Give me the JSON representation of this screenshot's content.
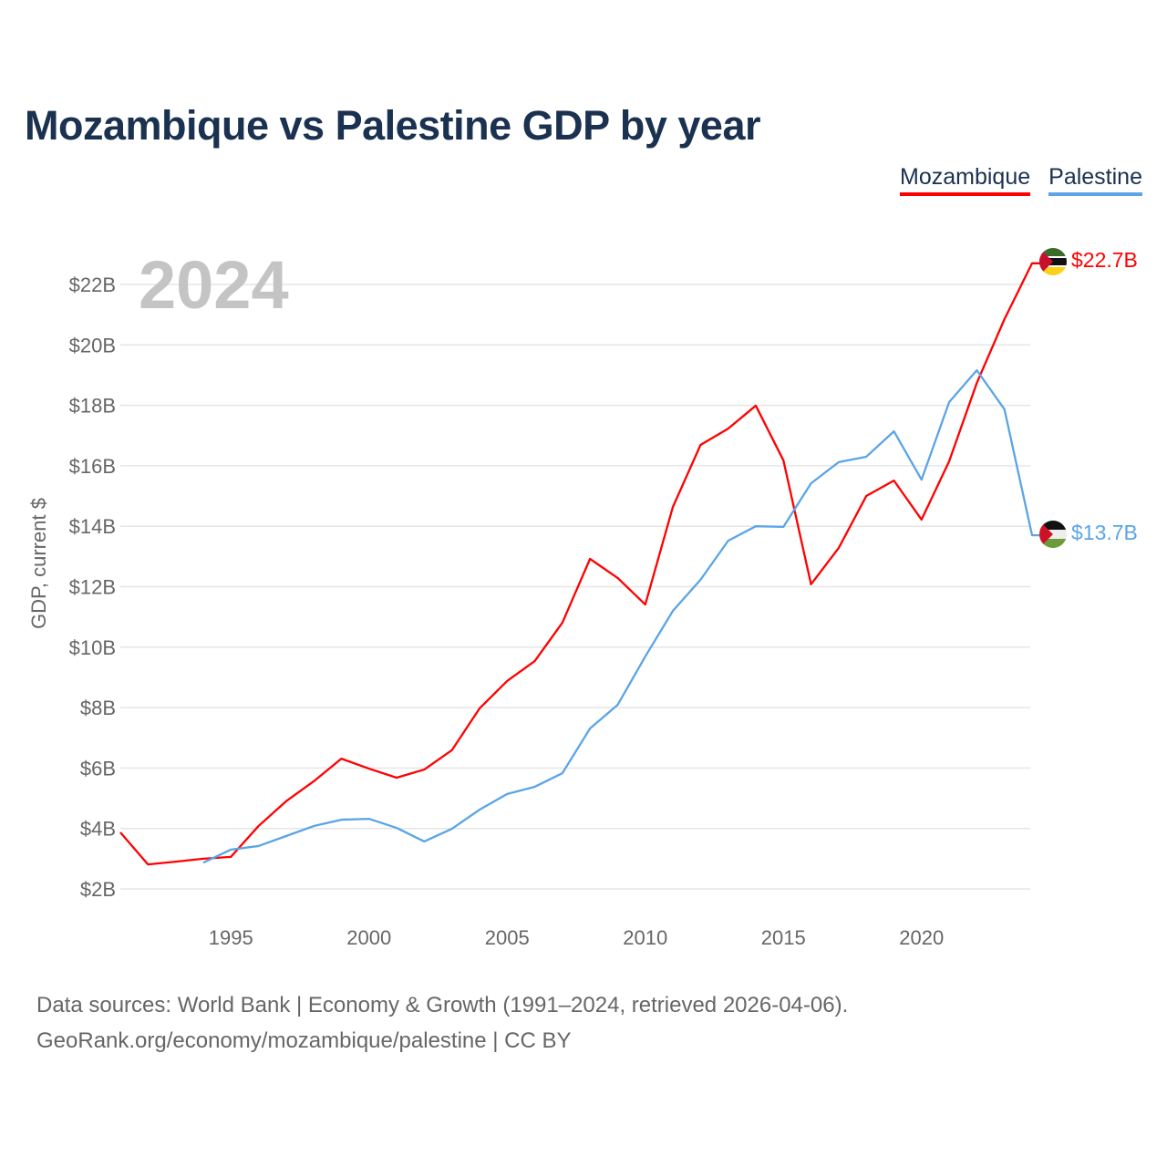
{
  "chart_data": {
    "type": "line",
    "title": "Mozambique vs Palestine GDP by year",
    "ylabel": "GDP, current $",
    "xlabel": "",
    "year_label": "2024",
    "xlim": [
      1991,
      2024
    ],
    "ylim": [
      2,
      22.7
    ],
    "x_ticks": [
      1995,
      2000,
      2005,
      2010,
      2015,
      2020
    ],
    "y_ticks": [
      2,
      4,
      6,
      8,
      10,
      12,
      14,
      16,
      18,
      20,
      22
    ],
    "y_tick_labels": [
      "$2B",
      "$4B",
      "$6B",
      "$8B",
      "$10B",
      "$12B",
      "$14B",
      "$16B",
      "$18B",
      "$20B",
      "$22B"
    ],
    "grid": true,
    "legend_position": "top-right",
    "series": [
      {
        "name": "Mozambique",
        "color": "#ff0000",
        "end_label": "$22.7B",
        "start_year": 1991,
        "values": [
          3.87,
          2.81,
          2.9,
          3.0,
          3.06,
          4.08,
          4.9,
          5.56,
          6.31,
          5.98,
          5.68,
          5.95,
          6.59,
          7.97,
          8.88,
          9.54,
          10.81,
          12.92,
          12.29,
          11.41,
          14.64,
          16.69,
          17.23,
          17.99,
          16.18,
          12.08,
          13.28,
          15.0,
          15.51,
          14.22,
          16.15,
          18.74,
          20.85,
          22.7
        ]
      },
      {
        "name": "Palestine",
        "color": "#5ba4e6",
        "end_label": "$13.7B",
        "start_year": 1994,
        "values": [
          2.87,
          3.3,
          3.42,
          3.75,
          4.08,
          4.29,
          4.32,
          4.02,
          3.57,
          3.99,
          4.62,
          5.14,
          5.38,
          5.83,
          7.31,
          8.09,
          9.69,
          11.2,
          12.23,
          13.52,
          14.0,
          13.98,
          15.42,
          16.12,
          16.3,
          17.14,
          15.54,
          18.11,
          19.16,
          17.87,
          13.7
        ]
      }
    ]
  },
  "footer": {
    "line1": "Data sources: World Bank | Economy & Growth (1991–2024, retrieved 2026-04-06).",
    "line2": "GeoRank.org/economy/mozambique/palestine | CC BY"
  }
}
